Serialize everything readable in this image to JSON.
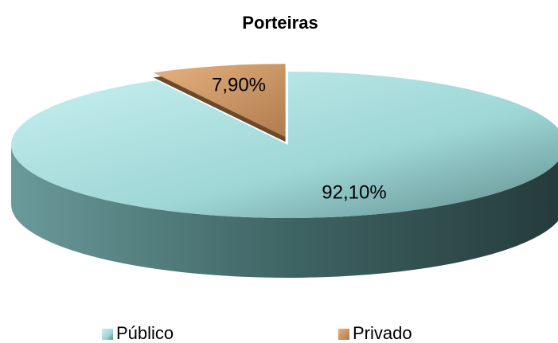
{
  "chart_data": {
    "type": "pie",
    "title": "Porteiras",
    "categories": [
      "Público",
      "Privado"
    ],
    "values": [
      92.1,
      7.9
    ],
    "value_labels": [
      "92,10%",
      "7,90%"
    ],
    "colors": [
      "#9ed6d6",
      "#e6b17f"
    ],
    "legend": "bottom"
  }
}
